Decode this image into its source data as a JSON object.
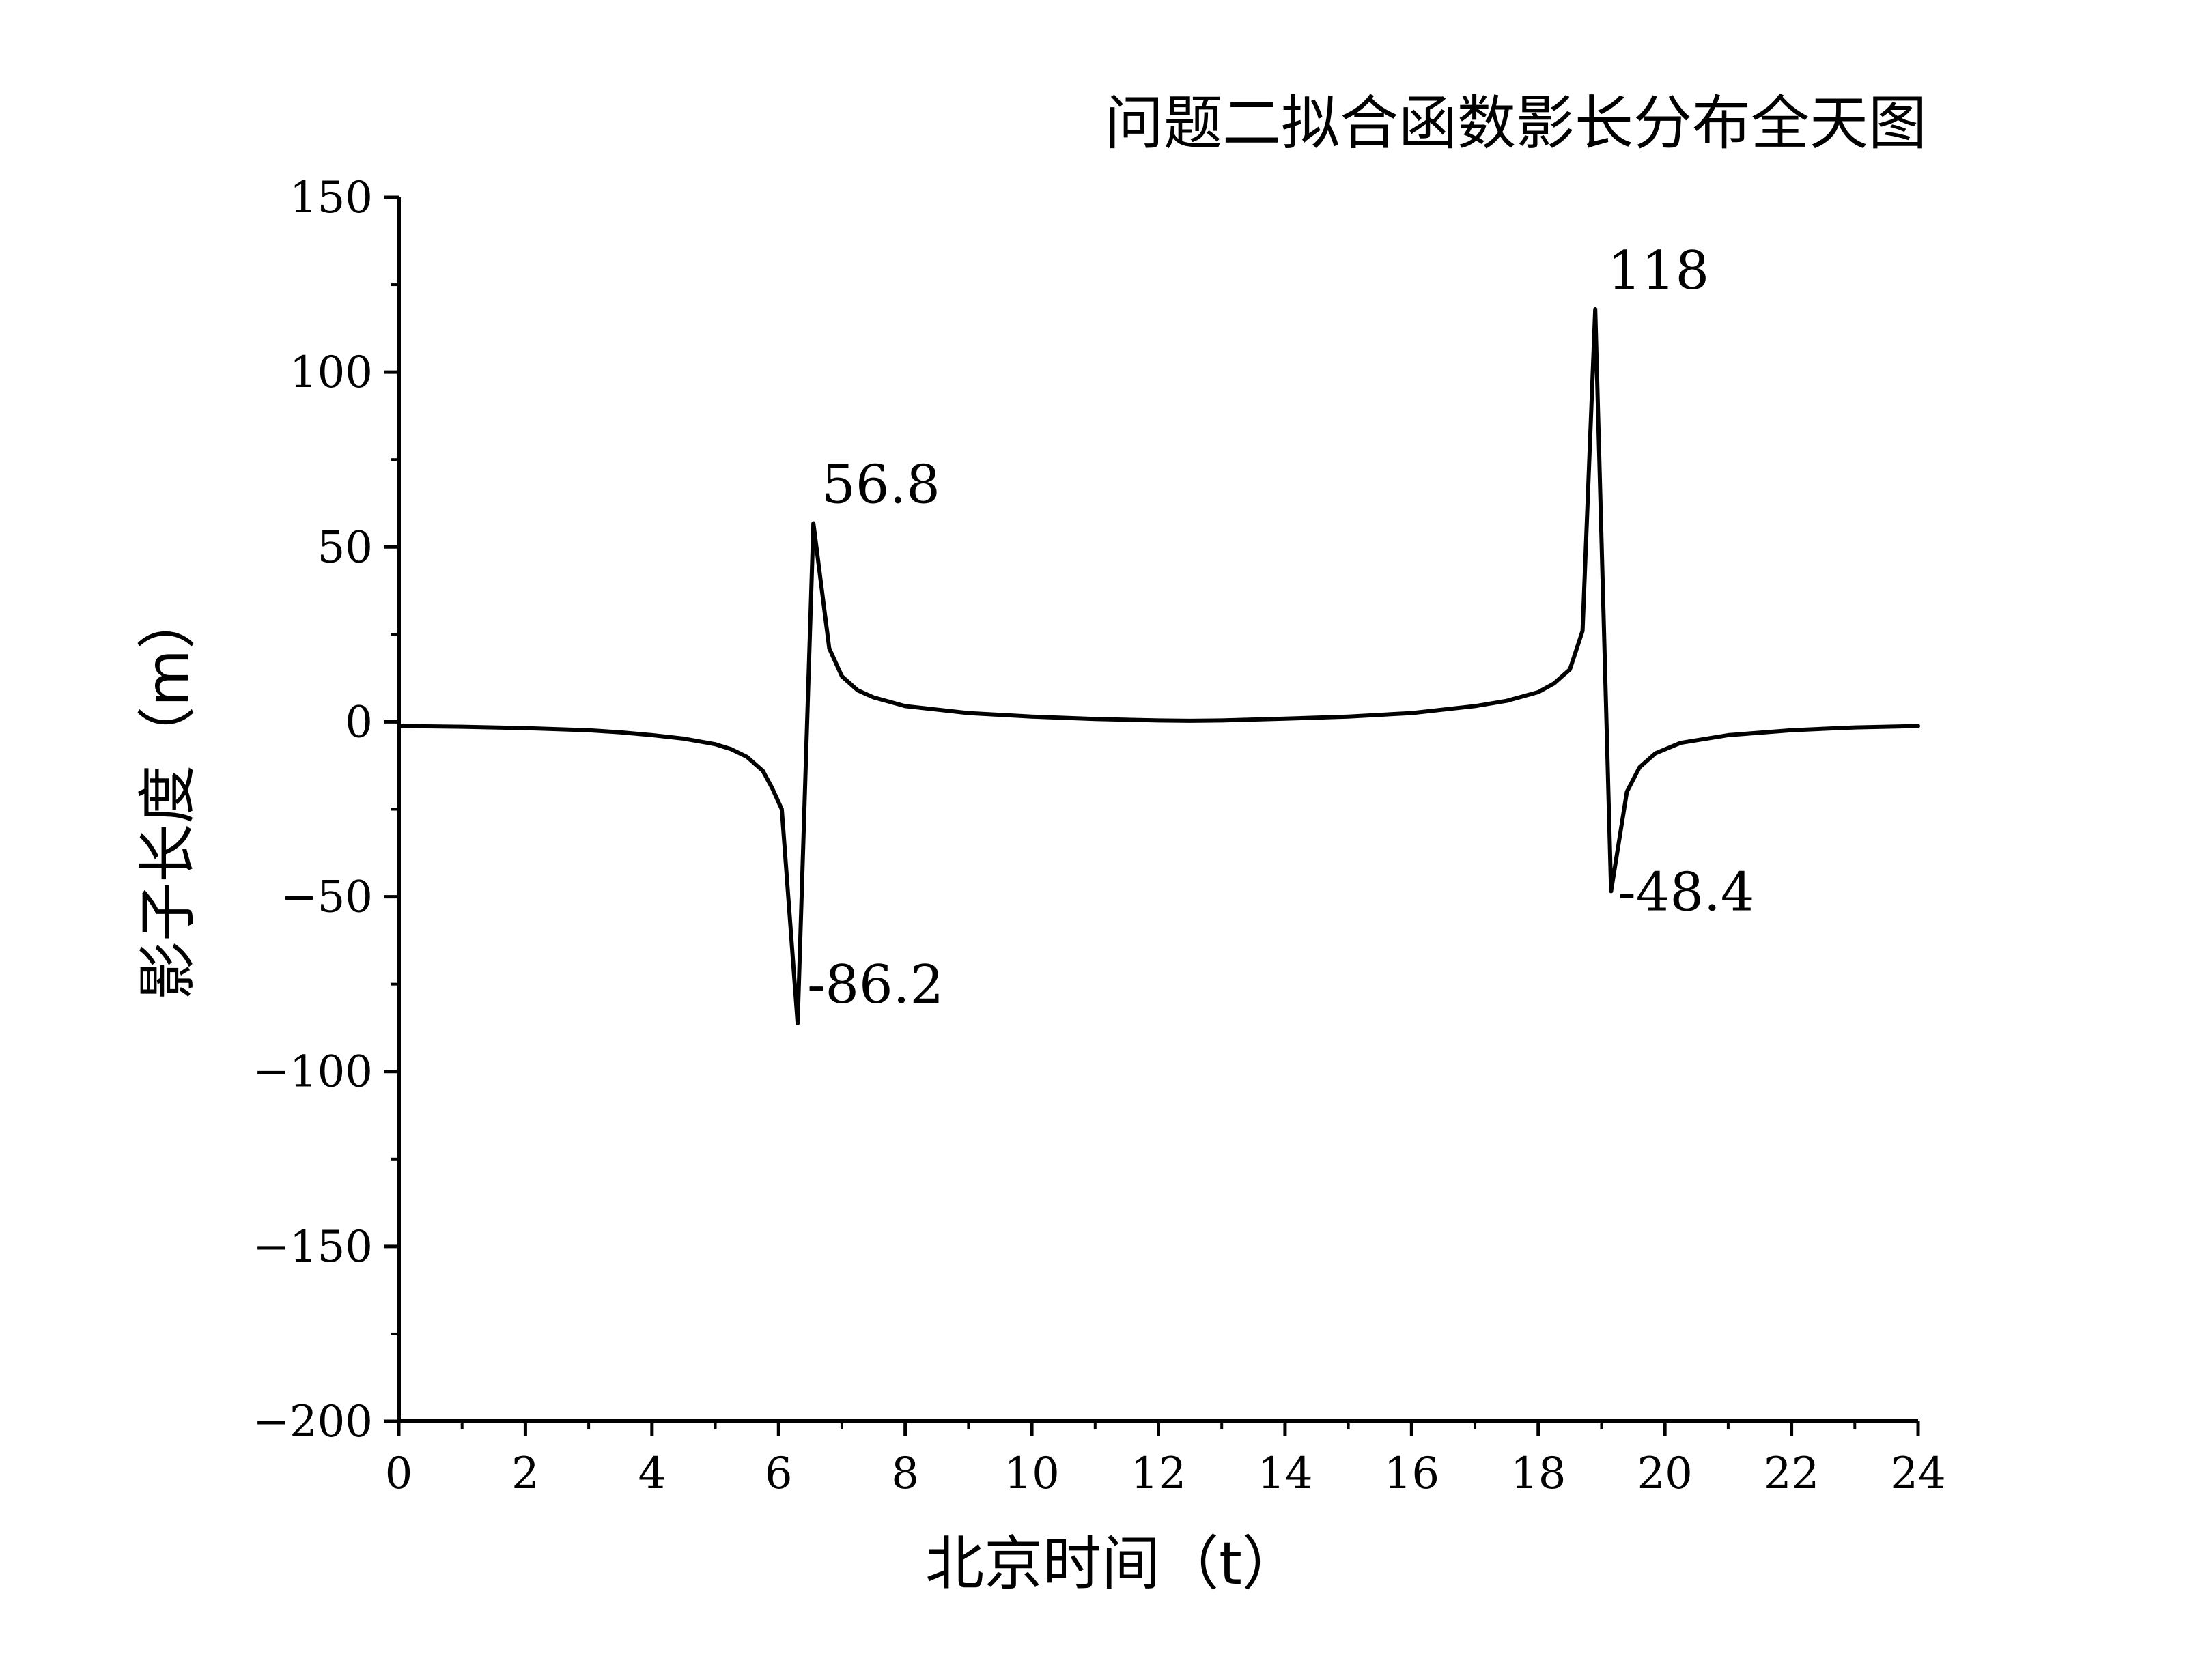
{
  "chart_data": {
    "type": "line",
    "title": "问题二拟合函数影长分布全天图",
    "xlabel": "北京时间（t）",
    "ylabel": "影子长度（m）",
    "xlim": [
      0,
      24
    ],
    "ylim": [
      -200,
      150
    ],
    "x_ticks": [
      0,
      2,
      4,
      6,
      8,
      10,
      12,
      14,
      16,
      18,
      20,
      22,
      24
    ],
    "y_ticks": [
      150,
      100,
      50,
      0,
      -50,
      -100,
      -150,
      -200
    ],
    "x_tick_labels": [
      "0",
      "2",
      "4",
      "6",
      "8",
      "10",
      "12",
      "14",
      "16",
      "18",
      "20",
      "22",
      "24"
    ],
    "y_tick_labels": [
      "150",
      "100",
      "50",
      "0",
      "−50",
      "−100",
      "−150",
      "−200"
    ],
    "grid": false,
    "series": [
      {
        "color": "#000000",
        "x": [
          0,
          1,
          2,
          3,
          3.5,
          4,
          4.5,
          5,
          5.25,
          5.5,
          5.75,
          5.9,
          6.05,
          6.3,
          6.55,
          6.8,
          7.0,
          7.25,
          7.5,
          8.0,
          9.0,
          10.0,
          11.0,
          12.0,
          12.5,
          13.0,
          14.0,
          15.0,
          16.0,
          17.0,
          17.5,
          18.0,
          18.25,
          18.5,
          18.7,
          18.9,
          19.15,
          19.4,
          19.6,
          19.85,
          20.25,
          21.0,
          22.0,
          23.0,
          24.0
        ],
        "y": [
          -1.2,
          -1.4,
          -1.8,
          -2.4,
          -3.0,
          -3.8,
          -4.8,
          -6.4,
          -7.8,
          -10,
          -14,
          -19,
          -25,
          -86.2,
          56.8,
          21,
          13,
          9,
          7,
          4.5,
          2.5,
          1.5,
          0.8,
          0.4,
          0.3,
          0.4,
          0.9,
          1.5,
          2.5,
          4.5,
          6.0,
          8.5,
          11,
          15,
          26,
          118,
          -48.4,
          -20,
          -13,
          -9,
          -6,
          -3.8,
          -2.4,
          -1.6,
          -1.2
        ]
      }
    ],
    "annotations": [
      {
        "text": "56.8",
        "x": 6.55,
        "y": 56.8
      },
      {
        "text": "-86.2",
        "x": 6.3,
        "y": -86.2
      },
      {
        "text": "118",
        "x": 18.9,
        "y": 118
      },
      {
        "text": "-48.4",
        "x": 19.15,
        "y": -48.4
      }
    ]
  }
}
